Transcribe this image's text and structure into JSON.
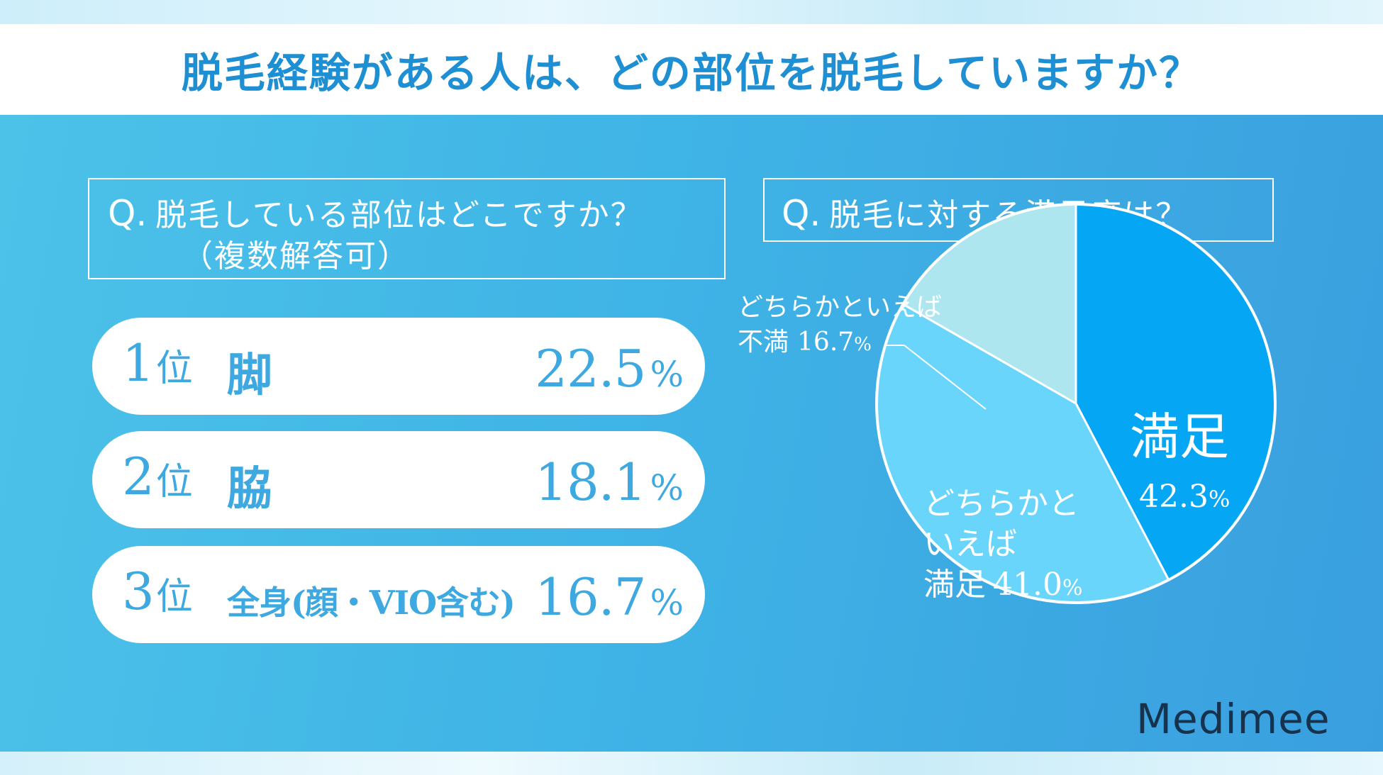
{
  "header": {
    "title": "脱毛経験がある人は、どの部位を脱毛していますか？"
  },
  "left_question": {
    "q_mark": "Q.",
    "line1": "脱毛している部位はどこですか？",
    "line2": "（複数解答可）"
  },
  "ranking": {
    "rank_unit": "位",
    "percent_sign": "%",
    "items": [
      {
        "rank": "1",
        "part": "脚",
        "value": "22.5"
      },
      {
        "rank": "2",
        "part": "脇",
        "value": "18.1"
      },
      {
        "rank": "3",
        "part": "全身(顔・VIO含む)",
        "value": "16.7"
      }
    ]
  },
  "right_question": {
    "q_mark": "Q.",
    "text": "脱毛に対する満足度は？"
  },
  "chart_data": {
    "type": "pie",
    "slices": [
      {
        "label": "満足",
        "value": 42.3,
        "color": "#05a7f5"
      },
      {
        "label": "どちらかといえば満足",
        "value": 41.0,
        "color": "#6ad5fb"
      },
      {
        "label": "どちらかといえば不満",
        "value": 16.7,
        "color": "#aee6ef"
      }
    ],
    "labels": {
      "satisfied_name": "満足",
      "satisfied_value": "42.3",
      "somewhat_line1": "どちらかと",
      "somewhat_line2": "いえば",
      "somewhat_line3": "満足",
      "somewhat_value": "41.0",
      "dissatisfied_line1": "どちらかといえば",
      "dissatisfied_line2": "不満",
      "dissatisfied_value": "16.7",
      "percent_sign": "%"
    }
  },
  "colors": {
    "title_blue": "#1e8fd2",
    "rank_blue": "#3ea8e0",
    "panel_blue": "#3fb4e6",
    "logo_navy": "#17324d"
  },
  "logo": {
    "text": "Medimee"
  }
}
